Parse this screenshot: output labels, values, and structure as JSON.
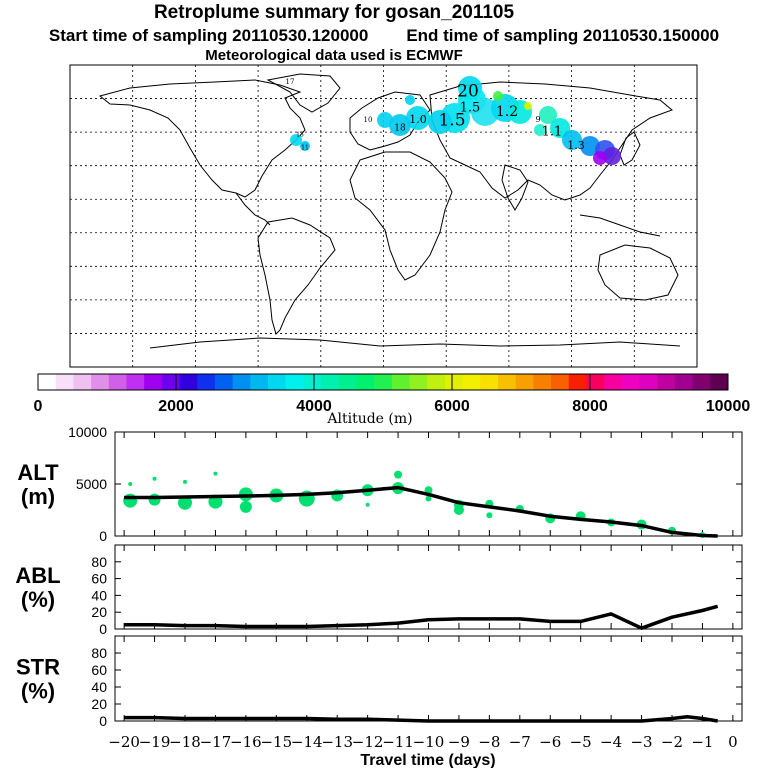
{
  "header": {
    "title": "Retroplume summary for gosan_201105",
    "start_label": "Start time of sampling 20110530.120000",
    "end_label": "End time of sampling 20110530.150000",
    "met_label": "Meteorological data used is ECMWF"
  },
  "colorbar": {
    "label": "Altitude (m)",
    "ticks": [
      "0",
      "2000",
      "4000",
      "6000",
      "8000",
      "10000"
    ],
    "tick_values": [
      0,
      2000,
      4000,
      6000,
      8000,
      10000
    ],
    "colors": [
      "#ffffff",
      "#f8e0f8",
      "#f0c0f0",
      "#e090e8",
      "#d060e8",
      "#c030f0",
      "#a000f0",
      "#7000f0",
      "#3000e0",
      "#1030f0",
      "#0060f0",
      "#0090f0",
      "#00b8f0",
      "#00d8f0",
      "#00f0f0",
      "#00f0d0",
      "#00f0b0",
      "#00f090",
      "#00f070",
      "#20f050",
      "#60f030",
      "#90f020",
      "#c0f010",
      "#e0f000",
      "#f0f000",
      "#f8e000",
      "#f8c000",
      "#f8a000",
      "#f88000",
      "#f86000",
      "#f82000",
      "#f80060",
      "#f800a0",
      "#f000c0",
      "#e000c0",
      "#c000a0",
      "#a00090",
      "#800070",
      "#600050"
    ]
  },
  "map": {
    "plume_labels": [
      "20",
      "1.5",
      "1.5",
      "1.2",
      "1.1",
      "1.0",
      "1.3",
      "18",
      "17",
      "13",
      "11",
      "10",
      "9"
    ]
  },
  "chart_data": [
    {
      "type": "line",
      "panel": "ALT",
      "ylabel": "ALT (m)",
      "ylabel_lines": [
        "ALT",
        "(m)"
      ],
      "yticks": [
        "10000",
        "5000",
        "0"
      ],
      "ytick_values": [
        10000,
        5000,
        0
      ],
      "ylim": [
        0,
        10000
      ],
      "x": [
        -20,
        -19,
        -18,
        -17,
        -16,
        -15,
        -14,
        -13,
        -12,
        -11,
        -10,
        -9,
        -8,
        -7,
        -6,
        -5,
        -4,
        -3,
        -2,
        -1,
        -0.5
      ],
      "values": [
        3700,
        3700,
        3750,
        3800,
        3850,
        3900,
        4000,
        4150,
        4400,
        4650,
        4000,
        3200,
        2800,
        2400,
        1900,
        1600,
        1350,
        1000,
        350,
        50,
        0
      ],
      "cluster_points": [
        {
          "x": -19.8,
          "y": 3400,
          "s": 7
        },
        {
          "x": -19.8,
          "y": 5000,
          "s": 2
        },
        {
          "x": -19.0,
          "y": 3500,
          "s": 6
        },
        {
          "x": -19.0,
          "y": 5500,
          "s": 2
        },
        {
          "x": -18.0,
          "y": 3200,
          "s": 7
        },
        {
          "x": -18.0,
          "y": 5200,
          "s": 2
        },
        {
          "x": -17.0,
          "y": 3300,
          "s": 7
        },
        {
          "x": -17.0,
          "y": 6000,
          "s": 2
        },
        {
          "x": -16.0,
          "y": 4000,
          "s": 7
        },
        {
          "x": -16.0,
          "y": 2800,
          "s": 6
        },
        {
          "x": -15.0,
          "y": 3900,
          "s": 7
        },
        {
          "x": -14.0,
          "y": 3600,
          "s": 8
        },
        {
          "x": -13.0,
          "y": 3900,
          "s": 6
        },
        {
          "x": -12.0,
          "y": 4400,
          "s": 6
        },
        {
          "x": -12.0,
          "y": 3000,
          "s": 2
        },
        {
          "x": -11.0,
          "y": 5900,
          "s": 4
        },
        {
          "x": -11.0,
          "y": 4600,
          "s": 6
        },
        {
          "x": -10.0,
          "y": 4400,
          "s": 4
        },
        {
          "x": -10.0,
          "y": 3600,
          "s": 3
        },
        {
          "x": -9.0,
          "y": 3000,
          "s": 5
        },
        {
          "x": -9.0,
          "y": 2500,
          "s": 5
        },
        {
          "x": -8.0,
          "y": 3100,
          "s": 4
        },
        {
          "x": -8.0,
          "y": 2000,
          "s": 3
        },
        {
          "x": -7.0,
          "y": 2600,
          "s": 4
        },
        {
          "x": -6.0,
          "y": 1700,
          "s": 5
        },
        {
          "x": -5.0,
          "y": 1900,
          "s": 5
        },
        {
          "x": -4.0,
          "y": 1300,
          "s": 4
        },
        {
          "x": -3.0,
          "y": 1100,
          "s": 5
        },
        {
          "x": -2.0,
          "y": 500,
          "s": 4
        },
        {
          "x": -1.0,
          "y": 100,
          "s": 3
        }
      ]
    },
    {
      "type": "line",
      "panel": "ABL",
      "ylabel": "ABL (%)",
      "ylabel_lines": [
        "ABL",
        "(%)"
      ],
      "yticks": [
        "80",
        "60",
        "40",
        "20",
        "0"
      ],
      "ytick_values": [
        80,
        60,
        40,
        20,
        0
      ],
      "ylim": [
        0,
        100
      ],
      "x": [
        -20,
        -19,
        -18,
        -17,
        -16,
        -15,
        -14,
        -13,
        -12,
        -11,
        -10,
        -9,
        -8,
        -7,
        -6,
        -5,
        -4,
        -3,
        -2,
        -1,
        -0.5
      ],
      "values": [
        5,
        5,
        4,
        4,
        3,
        3,
        3,
        4,
        5,
        7,
        11,
        12,
        12,
        12,
        9,
        9,
        18,
        1,
        14,
        22,
        27
      ]
    },
    {
      "type": "line",
      "panel": "STR",
      "ylabel": "STR (%)",
      "ylabel_lines": [
        "STR",
        "(%)"
      ],
      "yticks": [
        "80",
        "60",
        "40",
        "20",
        "0"
      ],
      "ytick_values": [
        80,
        60,
        40,
        20,
        0
      ],
      "ylim": [
        0,
        100
      ],
      "x": [
        -20,
        -19,
        -18,
        -17,
        -16,
        -15,
        -14,
        -13,
        -12,
        -11,
        -10,
        -9,
        -8,
        -7,
        -6,
        -5,
        -4,
        -3,
        -2,
        -1.5,
        -1,
        -0.5
      ],
      "values": [
        4,
        4,
        3,
        3,
        3,
        3,
        3,
        2,
        2,
        1,
        0,
        0,
        0,
        0,
        0,
        0,
        0,
        0,
        3,
        5,
        3,
        0
      ]
    }
  ],
  "xaxis": {
    "label": "Travel time (days)",
    "ticks": [
      "−20",
      "−19",
      "−18",
      "−17",
      "−16",
      "−15",
      "−14",
      "−13",
      "−12",
      "−11",
      "−10",
      "−9",
      "−8",
      "−7",
      "−6",
      "−5",
      "−4",
      "−3",
      "−2",
      "−1",
      "0"
    ],
    "tick_values": [
      -20,
      -19,
      -18,
      -17,
      -16,
      -15,
      -14,
      -13,
      -12,
      -11,
      -10,
      -9,
      -8,
      -7,
      -6,
      -5,
      -4,
      -3,
      -2,
      -1,
      0
    ]
  }
}
